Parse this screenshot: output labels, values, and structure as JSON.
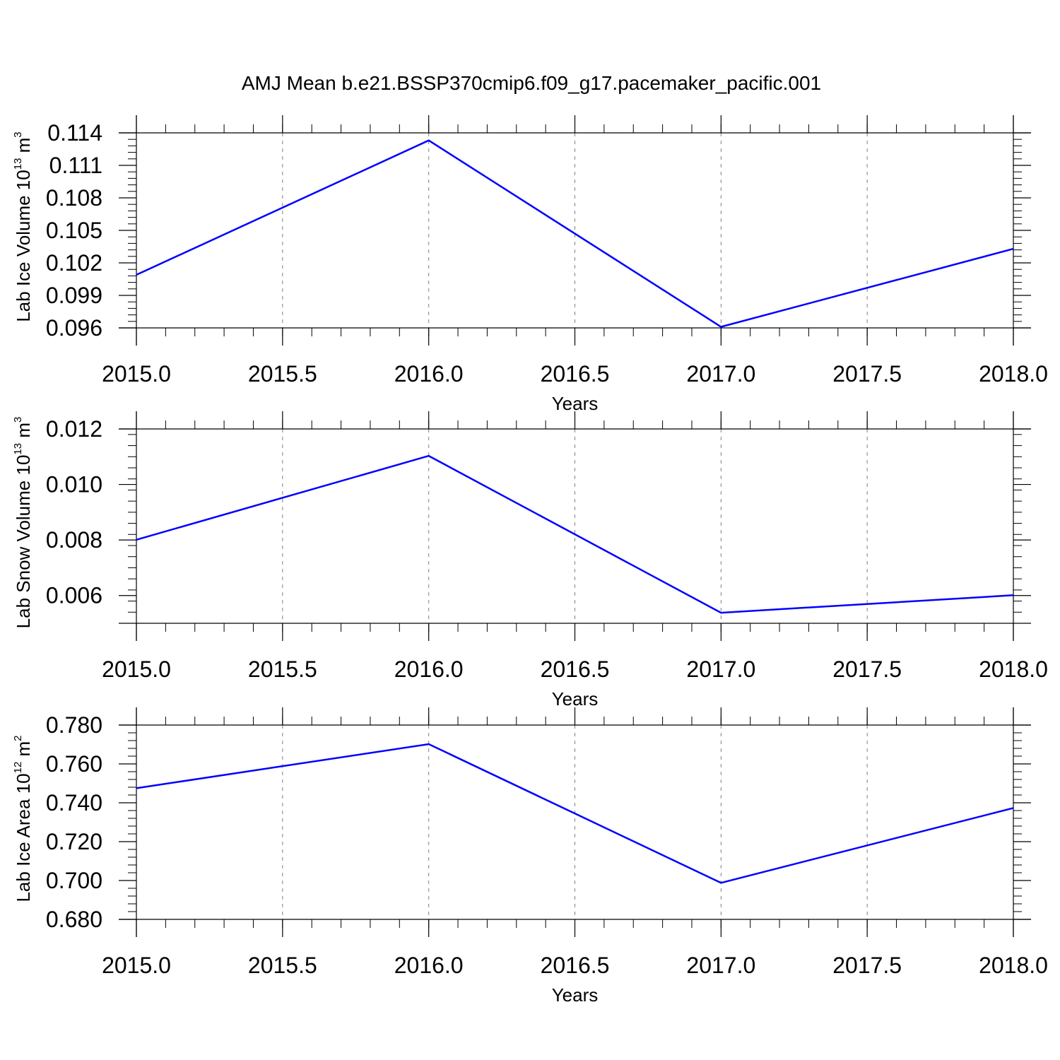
{
  "title": "AMJ Mean b.e21.BSSP370cmip6.f09_g17.pacemaker_pacific.001",
  "colors": {
    "line": "#0000ff",
    "axis": "#000000",
    "grid": "#808080"
  },
  "chart_data": [
    {
      "type": "line",
      "ylabel": {
        "text": "Lab Ice Volume 10",
        "exponent": "13",
        "unit": " m",
        "unit_exponent": "3"
      },
      "xlabel": "Years",
      "x": [
        2015.0,
        2016.0,
        2017.0,
        2018.0
      ],
      "y": [
        0.1009,
        0.1133,
        0.0961,
        0.1033
      ],
      "xlim": [
        2015.0,
        2018.0
      ],
      "ylim": [
        0.096,
        0.114
      ],
      "xticks": [
        2015.0,
        2015.5,
        2016.0,
        2016.5,
        2017.0,
        2017.5,
        2018.0
      ],
      "xticklabels": [
        "2015.0",
        "2015.5",
        "2016.0",
        "2016.5",
        "2017.0",
        "2017.5",
        "2018.0"
      ],
      "yticks": [
        0.096,
        0.099,
        0.102,
        0.105,
        0.108,
        0.111,
        0.114
      ],
      "yticklabels": [
        "0.096",
        "0.099",
        "0.102",
        "0.105",
        "0.108",
        "0.111",
        "0.114"
      ],
      "grid": "x-dashed"
    },
    {
      "type": "line",
      "ylabel": {
        "text": "Lab Snow Volume 10",
        "exponent": "13",
        "unit": " m",
        "unit_exponent": "3"
      },
      "xlabel": "Years",
      "x": [
        2015.0,
        2016.0,
        2017.0,
        2018.0
      ],
      "y": [
        0.00801,
        0.01103,
        0.00538,
        0.00601
      ],
      "xlim": [
        2015.0,
        2018.0
      ],
      "ylim": [
        0.005,
        0.012
      ],
      "xticks": [
        2015.0,
        2015.5,
        2016.0,
        2016.5,
        2017.0,
        2017.5,
        2018.0
      ],
      "xticklabels": [
        "2015.0",
        "2015.5",
        "2016.0",
        "2016.5",
        "2017.0",
        "2017.5",
        "2018.0"
      ],
      "yticks": [
        0.006,
        0.008,
        0.01,
        0.012
      ],
      "yticklabels": [
        "0.006",
        "0.008",
        "0.010",
        "0.012"
      ],
      "grid": "x-dashed"
    },
    {
      "type": "line",
      "ylabel": {
        "text": "Lab Ice Area 10",
        "exponent": "12",
        "unit": " m",
        "unit_exponent": "2"
      },
      "xlabel": "Years",
      "x": [
        2015.0,
        2016.0,
        2017.0,
        2018.0
      ],
      "y": [
        0.7475,
        0.7702,
        0.6988,
        0.7373
      ],
      "xlim": [
        2015.0,
        2018.0
      ],
      "ylim": [
        0.68,
        0.78
      ],
      "xticks": [
        2015.0,
        2015.5,
        2016.0,
        2016.5,
        2017.0,
        2017.5,
        2018.0
      ],
      "xticklabels": [
        "2015.0",
        "2015.5",
        "2016.0",
        "2016.5",
        "2017.0",
        "2017.5",
        "2018.0"
      ],
      "yticks": [
        0.68,
        0.7,
        0.72,
        0.74,
        0.76,
        0.78
      ],
      "yticklabels": [
        "0.680",
        "0.700",
        "0.720",
        "0.740",
        "0.760",
        "0.780"
      ],
      "grid": "x-dashed"
    }
  ]
}
